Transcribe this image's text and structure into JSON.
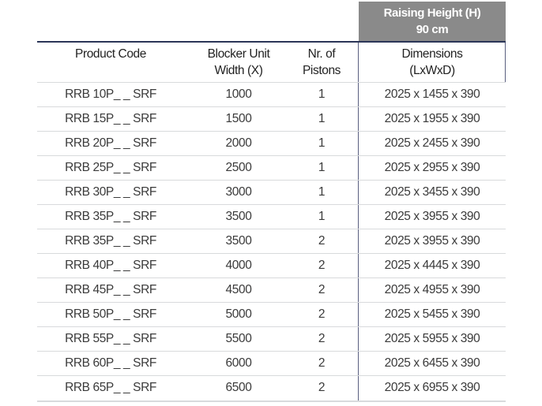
{
  "header": {
    "group_label_line1": "Raising Height (H)",
    "group_label_line2": "90 cm",
    "columns": [
      {
        "line1": "Product Code",
        "line2": ""
      },
      {
        "line1": "Blocker Unit",
        "line2": "Width (X)"
      },
      {
        "line1": "Nr. of",
        "line2": "Pistons"
      },
      {
        "line1": "Dimensions",
        "line2": "(LxWxD)"
      }
    ]
  },
  "rows": [
    [
      "RRB 10P_ _ SRF",
      "1000",
      "1",
      "2025 x 1455 x 390"
    ],
    [
      "RRB 15P_ _ SRF",
      "1500",
      "1",
      "2025 x 1955 x 390"
    ],
    [
      "RRB 20P_ _ SRF",
      "2000",
      "1",
      "2025 x 2455 x 390"
    ],
    [
      "RRB 25P_ _ SRF",
      "2500",
      "1",
      "2025 x 2955 x 390"
    ],
    [
      "RRB 30P_ _ SRF",
      "3000",
      "1",
      "2025 x 3455 x 390"
    ],
    [
      "RRB 35P_ _ SRF",
      "3500",
      "1",
      "2025 x 3955 x 390"
    ],
    [
      "RRB 35P_ _ SRF",
      "3500",
      "2",
      "2025 x 3955 x 390"
    ],
    [
      "RRB 40P_ _ SRF",
      "4000",
      "2",
      "2025 x 4445 x 390"
    ],
    [
      "RRB 45P_ _ SRF",
      "4500",
      "2",
      "2025 x 4955 x 390"
    ],
    [
      "RRB 50P_ _ SRF",
      "5000",
      "2",
      "2025 x 5455 x 390"
    ],
    [
      "RRB 55P_ _ SRF",
      "5500",
      "2",
      "2025 x 5955 x 390"
    ],
    [
      "RRB 60P_ _ SRF",
      "6000",
      "2",
      "2025 x 6455 x 390"
    ],
    [
      "RRB 65P_ _ SRF",
      "6500",
      "2",
      "2025 x 6955 x 390"
    ]
  ]
}
